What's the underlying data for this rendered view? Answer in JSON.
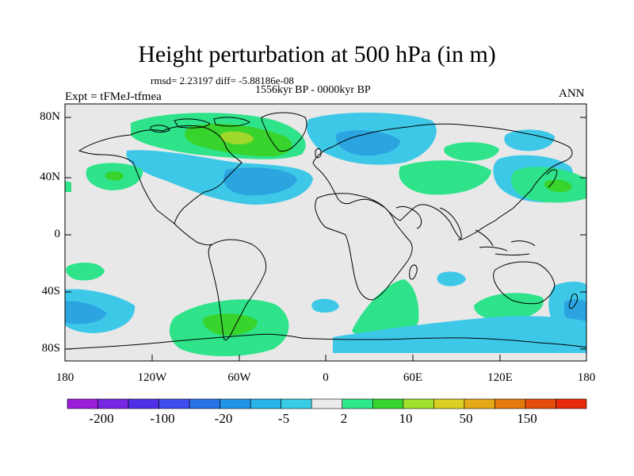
{
  "title": "Height perturbation at 500 hPa (in m)",
  "stats": "rmsd= 2.23197 diff= -5.88186e-08",
  "experiment": "Expt = tFMeJ-tfmea",
  "period": "1556kyr BP - 0000kyr BP",
  "season": "ANN",
  "y_ticks": [
    "80N",
    "40N",
    "0",
    "40S",
    "80S"
  ],
  "x_ticks": [
    "180",
    "120W",
    "60W",
    "0",
    "60E",
    "120E",
    "180"
  ],
  "colorbar": {
    "colors": [
      "#9a1dd9",
      "#7727e3",
      "#4e2fe6",
      "#3f4df0",
      "#2772e6",
      "#1f94e6",
      "#27b4e6",
      "#37cde6",
      "#ebebeb",
      "#2ee88c",
      "#37d62e",
      "#9ee02b",
      "#dacf22",
      "#e6a917",
      "#e6790e",
      "#e64d0d",
      "#e62a0a"
    ],
    "labels": [
      "-200",
      "-100",
      "-20",
      "-5",
      "2",
      "10",
      "50",
      "150"
    ]
  },
  "map_colors": {
    "background": "#e8e8e8",
    "light_blue": "#3ec8e8",
    "mid_blue": "#2ba4e0",
    "dark_blue": "#1e84d4",
    "light_green": "#2ee38a",
    "mid_green": "#38d32c",
    "yellow_green": "#9fd82a",
    "coast": "#000000"
  }
}
